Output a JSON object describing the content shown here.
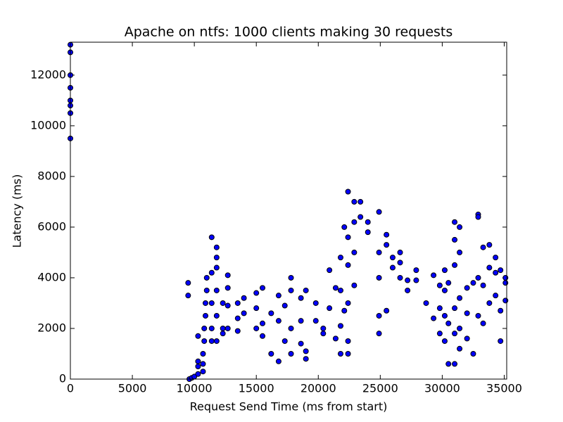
{
  "chart_data": {
    "type": "scatter",
    "title": "Apache on ntfs: 1000 clients making 30 requests",
    "x_label": "Request Send Time (ms from start)",
    "y_label": "Latency (ms)",
    "color": "#0000ff",
    "x": [
      0,
      0,
      0,
      0,
      0,
      0,
      0,
      0,
      9500,
      9500,
      9600,
      9800,
      10000,
      10300,
      10300,
      10300,
      10300,
      10700,
      10700,
      10700,
      10800,
      10800,
      10900,
      10900,
      11000,
      11000,
      11400,
      11400,
      11400,
      11400,
      11400,
      11800,
      11800,
      11800,
      11800,
      11800,
      11800,
      12300,
      12300,
      12300,
      12700,
      12700,
      12700,
      12700,
      13500,
      13500,
      13500,
      14000,
      14000,
      15000,
      15000,
      15000,
      15500,
      15500,
      15500,
      16200,
      16200,
      16800,
      16800,
      16800,
      17300,
      17300,
      17800,
      17800,
      17800,
      17800,
      18600,
      18600,
      18600,
      19000,
      19000,
      19000,
      19800,
      19800,
      20400,
      20400,
      20900,
      20900,
      21400,
      21400,
      21800,
      21800,
      21800,
      21800,
      22100,
      22100,
      22400,
      22400,
      22400,
      22400,
      22400,
      22400,
      22900,
      22900,
      22900,
      22900,
      23400,
      23400,
      24000,
      24000,
      24900,
      24900,
      24900,
      24900,
      24900,
      25500,
      25500,
      25500,
      26000,
      26000,
      26600,
      26600,
      26600,
      27200,
      27200,
      27900,
      27900,
      28700,
      29300,
      29300,
      29800,
      29800,
      29800,
      30200,
      30200,
      30200,
      30200,
      30500,
      30500,
      30500,
      31000,
      31000,
      31000,
      31000,
      31000,
      31000,
      31400,
      31400,
      31400,
      31400,
      31400,
      32000,
      32000,
      32000,
      32500,
      32500,
      32900,
      32900,
      32900,
      32900,
      33300,
      33300,
      33300,
      33800,
      33800,
      33800,
      34300,
      34300,
      34300,
      34700,
      34700,
      34700,
      35100,
      35100,
      35100
    ],
    "values": [
      9500,
      10500,
      10800,
      11000,
      11500,
      12000,
      12900,
      13200,
      3800,
      3300,
      0,
      50,
      100,
      200,
      500,
      700,
      1700,
      300,
      600,
      1000,
      1500,
      2000,
      2500,
      3000,
      3500,
      4000,
      5600,
      4200,
      3000,
      2000,
      1500,
      5200,
      4800,
      4400,
      3500,
      2500,
      1500,
      3000,
      2000,
      1800,
      4100,
      3600,
      2900,
      2000,
      3000,
      2400,
      1900,
      3200,
      2600,
      3400,
      2800,
      2000,
      3600,
      2200,
      1700,
      2600,
      1000,
      3300,
      2300,
      700,
      2900,
      1500,
      4000,
      3500,
      2000,
      1000,
      3200,
      2300,
      1400,
      3500,
      1100,
      800,
      3000,
      2300,
      2000,
      1800,
      4300,
      2800,
      3600,
      1600,
      4800,
      3500,
      2100,
      1000,
      6000,
      2700,
      7400,
      5600,
      4500,
      3000,
      1500,
      1000,
      7000,
      6200,
      5000,
      3700,
      7000,
      6400,
      6200,
      5800,
      6600,
      5000,
      4000,
      2500,
      1800,
      5700,
      5300,
      2700,
      4800,
      4400,
      5000,
      4600,
      4000,
      3900,
      3500,
      4300,
      3900,
      3000,
      4100,
      2400,
      3700,
      2800,
      1800,
      4300,
      3500,
      2500,
      1500,
      3800,
      2200,
      600,
      6200,
      5500,
      4500,
      2800,
      1800,
      600,
      6000,
      5000,
      3200,
      2000,
      1200,
      3600,
      2600,
      1600,
      3800,
      1000,
      6500,
      6400,
      4000,
      2500,
      5200,
      3700,
      2200,
      5300,
      4400,
      3000,
      4800,
      4200,
      3300,
      4300,
      2700,
      1500,
      4000,
      3800,
      3100
    ],
    "xlim": [
      0,
      35200
    ],
    "ylim": [
      0,
      13300
    ],
    "xticks": [
      0,
      5000,
      10000,
      15000,
      20000,
      25000,
      30000,
      35000
    ],
    "yticks": [
      0,
      2000,
      4000,
      6000,
      8000,
      10000,
      12000
    ]
  }
}
